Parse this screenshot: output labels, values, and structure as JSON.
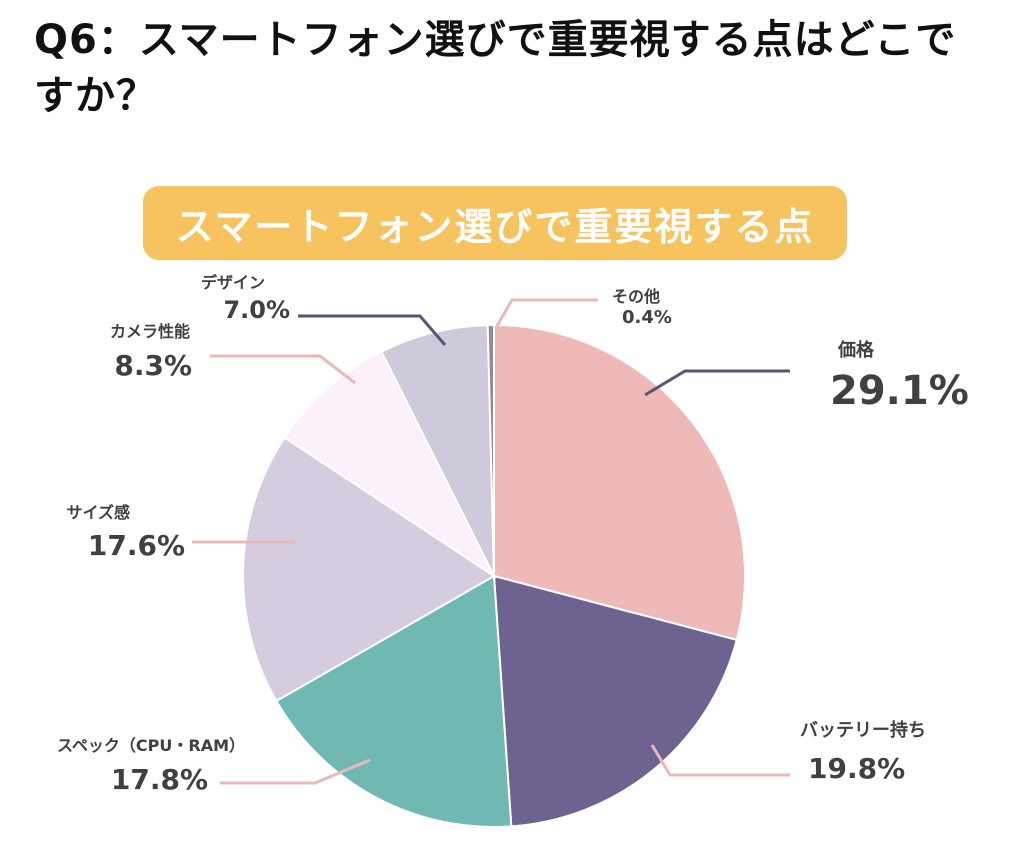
{
  "question": "Q6：スマートフォン選びで重要視する点はどこですか？",
  "chart_data": {
    "type": "pie",
    "title": "スマートフォン選びで重要視する点",
    "unit": "%",
    "categories": [
      "価格",
      "バッテリー持ち",
      "スペック（CPU・RAM）",
      "サイズ感",
      "カメラ性能",
      "デザイン",
      "その他"
    ],
    "values": [
      29.1,
      19.8,
      17.8,
      17.6,
      8.3,
      7.0,
      0.4
    ],
    "value_labels": [
      "29.1%",
      "19.8%",
      "17.8%",
      "17.6%",
      "8.3%",
      "7.0%",
      "0.4%"
    ],
    "colors": [
      "#efb9b7",
      "#6e6290",
      "#6fb8b3",
      "#d6cce0",
      "#fcf0fb",
      "#cfcad9",
      "#8f8aa0"
    ],
    "leader_colors": [
      "#5b5475",
      "#e9b8b8",
      "#e9b8b8",
      "#e9b8b8",
      "#e9b8b8",
      "#5b5475",
      "#e9b8b8"
    ],
    "start": "12 o'clock",
    "direction": "clockwise",
    "legend": "none"
  }
}
